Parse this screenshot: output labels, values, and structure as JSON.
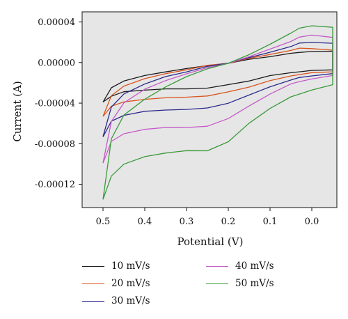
{
  "chart_data": {
    "type": "line",
    "xlabel": "Potential (V)",
    "ylabel": "Current (A)",
    "x_ticks": [
      "0.5",
      "0.4",
      "0.3",
      "0.2",
      "0.1",
      "0.0"
    ],
    "y_ticks": [
      "0.00004",
      "0.00000",
      "-0.00004",
      "-0.00008",
      "-0.00012"
    ],
    "xlim": [
      0.55,
      -0.06
    ],
    "ylim": [
      -0.000143,
      5e-05
    ],
    "grid": false,
    "background": "#e6e6e6",
    "legend_placement": "bottom",
    "x_vertices": [
      0.5,
      0.48,
      0.45,
      0.4,
      0.35,
      0.3,
      0.25,
      0.2,
      0.15,
      0.1,
      0.05,
      0.03,
      0.0,
      -0.05
    ],
    "series": [
      {
        "name": "10 mV/s",
        "color": "#1a1a1a",
        "forward": [
          -3.9e-05,
          -3.3e-05,
          -2.9e-05,
          -2.7e-05,
          -2.6e-05,
          -2.6e-05,
          -2.5e-05,
          -2.2e-05,
          -1.8e-05,
          -1.3e-05,
          -1e-05,
          -9e-06,
          -8e-06,
          -7e-06
        ],
        "reverse": [
          -3.9e-05,
          -2.5e-05,
          -1.8e-05,
          -1.3e-05,
          -9e-06,
          -6e-06,
          -3e-06,
          -5e-07,
          3e-06,
          6e-06,
          9e-06,
          1e-05,
          1.1e-05,
          1.1e-05
        ]
      },
      {
        "name": "20 mV/s",
        "color": "#d9541e",
        "forward": [
          -5.3e-05,
          -4.3e-05,
          -3.9e-05,
          -3.6e-05,
          -3.5e-05,
          -3.4e-05,
          -3.3e-05,
          -2.9e-05,
          -2.4e-05,
          -1.8e-05,
          -1.3e-05,
          -1.2e-05,
          -1e-05,
          -9e-06
        ],
        "reverse": [
          -5.3e-05,
          -3.3e-05,
          -2.3e-05,
          -1.6e-05,
          -1.1e-05,
          -7e-06,
          -3e-06,
          -5e-07,
          4e-06,
          8e-06,
          1.2e-05,
          1.4e-05,
          1.4e-05,
          1.2e-05
        ]
      },
      {
        "name": "30 mV/s",
        "color": "#2b2a8c",
        "forward": [
          -7.3e-05,
          -5.8e-05,
          -5.2e-05,
          -4.8e-05,
          -4.7e-05,
          -4.6e-05,
          -4.5e-05,
          -4e-05,
          -3.2e-05,
          -2.4e-05,
          -1.7e-05,
          -1.5e-05,
          -1.3e-05,
          -1.1e-05
        ],
        "reverse": [
          -7.3e-05,
          -4.4e-05,
          -3.1e-05,
          -2.1e-05,
          -1.4e-05,
          -9e-06,
          -4e-06,
          -5e-07,
          5e-06,
          1e-05,
          1.6e-05,
          1.9e-05,
          2e-05,
          1.9e-05
        ]
      },
      {
        "name": "40 mV/s",
        "color": "#c45ac8",
        "forward": [
          -9.9e-05,
          -7.8e-05,
          -7e-05,
          -6.6e-05,
          -6.4e-05,
          -6.4e-05,
          -6.3e-05,
          -5.5e-05,
          -4.3e-05,
          -3.1e-05,
          -2.1e-05,
          -1.9e-05,
          -1.6e-05,
          -1.3e-05
        ],
        "reverse": [
          -9.9e-05,
          -5.8e-05,
          -4e-05,
          -2.6e-05,
          -1.8e-05,
          -1.1e-05,
          -5e-06,
          -1e-06,
          6e-06,
          1.3e-05,
          2.1e-05,
          2.5e-05,
          2.7e-05,
          2.5e-05
        ]
      },
      {
        "name": "50 mV/s",
        "color": "#3a9a3a",
        "forward": [
          -0.000135,
          -0.000112,
          -0.0001,
          -9.3e-05,
          -8.9e-05,
          -8.7e-05,
          -8.7e-05,
          -7.8e-05,
          -6e-05,
          -4.5e-05,
          -3.4e-05,
          -3.1e-05,
          -2.7e-05,
          -2.2e-05
        ],
        "reverse": [
          -0.000135,
          -7.5e-05,
          -5.2e-05,
          -3.6e-05,
          -2.4e-05,
          -1.4e-05,
          -6e-06,
          -1e-06,
          8e-06,
          1.8e-05,
          2.9e-05,
          3.4e-05,
          3.6e-05,
          3.5e-05
        ]
      }
    ]
  }
}
